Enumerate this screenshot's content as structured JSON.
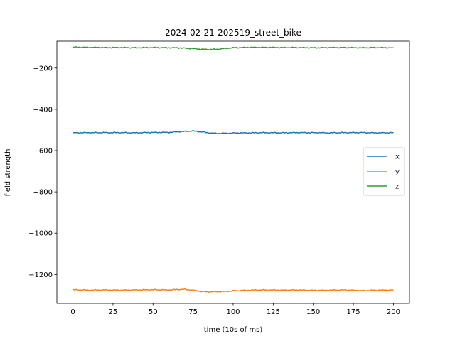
{
  "chart_data": {
    "type": "line",
    "title": "2024-02-21-202519_street_bike",
    "xlabel": "time (10s of ms)",
    "ylabel": "field strength",
    "xlim": [
      -10,
      210
    ],
    "ylim": [
      -1340,
      -70
    ],
    "xticks": [
      0,
      25,
      50,
      75,
      100,
      125,
      150,
      175,
      200
    ],
    "yticks": [
      -1200,
      -1000,
      -800,
      -600,
      -400,
      -200
    ],
    "legend": "center-right",
    "grid": false,
    "series": [
      {
        "name": "x",
        "color": "#1f77b4",
        "x": [
          0,
          10,
          20,
          30,
          40,
          50,
          60,
          65,
          70,
          75,
          80,
          85,
          90,
          95,
          100,
          110,
          120,
          130,
          140,
          150,
          160,
          170,
          180,
          190,
          200
        ],
        "y": [
          -514,
          -513,
          -513,
          -513,
          -514,
          -512,
          -512,
          -509,
          -507,
          -505,
          -509,
          -514,
          -517,
          -516,
          -515,
          -514,
          -513,
          -514,
          -513,
          -513,
          -514,
          -513,
          -513,
          -514,
          -513
        ]
      },
      {
        "name": "y",
        "color": "#ff7f0e",
        "x": [
          0,
          10,
          20,
          30,
          40,
          50,
          60,
          65,
          70,
          75,
          80,
          85,
          90,
          95,
          100,
          110,
          120,
          130,
          140,
          150,
          160,
          170,
          180,
          190,
          200
        ],
        "y": [
          -1274,
          -1276,
          -1275,
          -1276,
          -1275,
          -1274,
          -1275,
          -1273,
          -1272,
          -1276,
          -1282,
          -1284,
          -1283,
          -1282,
          -1279,
          -1276,
          -1275,
          -1276,
          -1275,
          -1277,
          -1276,
          -1275,
          -1278,
          -1276,
          -1275
        ]
      },
      {
        "name": "z",
        "color": "#2ca02c",
        "x": [
          0,
          10,
          20,
          30,
          40,
          50,
          60,
          65,
          70,
          75,
          80,
          85,
          90,
          95,
          100,
          110,
          120,
          130,
          140,
          150,
          160,
          170,
          180,
          190,
          200
        ],
        "y": [
          -99,
          -100,
          -101,
          -101,
          -102,
          -101,
          -102,
          -102,
          -104,
          -106,
          -109,
          -110,
          -109,
          -105,
          -102,
          -100,
          -100,
          -101,
          -101,
          -102,
          -101,
          -101,
          -102,
          -101,
          -102
        ]
      }
    ]
  }
}
